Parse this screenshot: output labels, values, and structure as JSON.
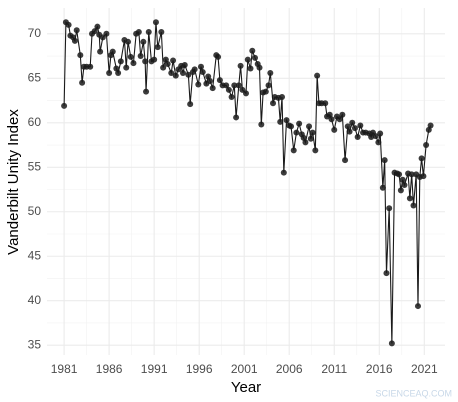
{
  "chart_data": {
    "type": "line",
    "x_label": "Year",
    "y_label": "Vanderbilt Unity Index",
    "watermark": "SCIENCEAQ.COM",
    "xlim": [
      1979.1,
      2023.3
    ],
    "ylim": [
      33.9,
      72.9
    ],
    "xticks": [
      1981,
      1986,
      1991,
      1996,
      2001,
      2006,
      2011,
      2016,
      2021
    ],
    "yticks": [
      35,
      40,
      45,
      50,
      55,
      60,
      65,
      70
    ],
    "grid": true,
    "markers": true,
    "x": [
      1981.0,
      1981.2,
      1981.5,
      1981.7,
      1982.0,
      1982.2,
      1982.4,
      1982.8,
      1983.0,
      1983.2,
      1983.5,
      1983.9,
      1984.1,
      1984.4,
      1984.7,
      1984.9,
      1985.0,
      1985.3,
      1985.7,
      1986.0,
      1986.2,
      1986.4,
      1986.8,
      1987.0,
      1987.3,
      1987.7,
      1987.9,
      1988.1,
      1988.4,
      1988.7,
      1989.0,
      1989.3,
      1989.5,
      1989.8,
      1990.0,
      1990.1,
      1990.4,
      1990.7,
      1991.0,
      1991.2,
      1991.4,
      1991.8,
      1992.0,
      1992.3,
      1992.5,
      1992.9,
      1993.1,
      1993.4,
      1993.7,
      1994.0,
      1994.2,
      1994.4,
      1994.8,
      1995.0,
      1995.3,
      1995.5,
      1995.9,
      1996.2,
      1996.4,
      1996.8,
      1997.0,
      1997.2,
      1997.5,
      1997.9,
      1998.1,
      1998.3,
      1998.6,
      1999.0,
      1999.3,
      1999.6,
      1999.9,
      2000.1,
      2000.4,
      2000.6,
      2000.8,
      2001.2,
      2001.4,
      2001.7,
      2001.9,
      2002.2,
      2002.5,
      2002.7,
      2002.9,
      2003.1,
      2003.4,
      2003.7,
      2003.9,
      2004.2,
      2004.4,
      2004.8,
      2005.0,
      2005.2,
      2005.4,
      2005.7,
      2006.0,
      2006.2,
      2006.5,
      2006.8,
      2007.1,
      2007.4,
      2007.6,
      2007.8,
      2008.2,
      2008.4,
      2008.6,
      2008.9,
      2009.1,
      2009.3,
      2009.6,
      2010.0,
      2010.2,
      2010.5,
      2010.7,
      2011.0,
      2011.3,
      2011.6,
      2011.9,
      2012.2,
      2012.5,
      2012.7,
      2013.0,
      2013.3,
      2013.6,
      2013.9,
      2014.2,
      2014.5,
      2014.9,
      2015.1,
      2015.3,
      2015.6,
      2015.9,
      2016.1,
      2016.4,
      2016.6,
      2016.8,
      2017.1,
      2017.4,
      2017.7,
      2018.0,
      2018.2,
      2018.4,
      2018.6,
      2018.8,
      2019.2,
      2019.4,
      2019.6,
      2019.8,
      2020.1,
      2020.3,
      2020.5,
      2020.7,
      2020.9,
      2021.2,
      2021.5,
      2021.7
    ],
    "series": [
      {
        "name": "Vanderbilt Unity Index",
        "color": "#1a1a1a",
        "values": [
          61.9,
          71.3,
          71.0,
          69.8,
          69.6,
          69.2,
          70.4,
          67.6,
          64.5,
          66.3,
          66.3,
          66.3,
          70.0,
          70.3,
          70.8,
          69.9,
          68.0,
          69.6,
          70.0,
          65.6,
          67.6,
          68.0,
          66.1,
          65.6,
          66.9,
          69.3,
          66.2,
          69.1,
          67.4,
          66.7,
          70.0,
          70.2,
          67.5,
          69.1,
          66.9,
          63.5,
          70.2,
          66.9,
          67.1,
          71.3,
          68.5,
          70.2,
          66.2,
          67.1,
          66.6,
          65.6,
          67.0,
          65.3,
          66.0,
          66.4,
          65.6,
          66.5,
          65.4,
          62.1,
          65.7,
          66.0,
          64.3,
          66.3,
          65.7,
          64.4,
          65.2,
          64.7,
          63.9,
          67.6,
          67.4,
          64.8,
          64.2,
          64.2,
          63.7,
          62.9,
          64.2,
          60.6,
          64.2,
          66.4,
          63.7,
          63.3,
          67.1,
          66.1,
          68.1,
          67.3,
          66.6,
          66.2,
          59.8,
          63.4,
          63.5,
          64.2,
          65.6,
          62.2,
          62.9,
          62.8,
          60.1,
          62.9,
          54.4,
          60.3,
          59.7,
          59.6,
          56.9,
          58.9,
          59.9,
          58.7,
          58.3,
          57.8,
          59.6,
          58.2,
          58.9,
          56.9,
          65.3,
          62.2,
          62.2,
          62.2,
          60.7,
          60.9,
          60.4,
          59.2,
          60.7,
          60.4,
          60.9,
          55.8,
          59.6,
          59.0,
          60.0,
          59.4,
          58.4,
          59.7,
          58.9,
          58.9,
          58.8,
          58.4,
          58.9,
          58.5,
          57.8,
          58.8,
          52.7,
          55.8,
          43.1,
          50.4,
          35.2,
          54.4,
          54.3,
          54.2,
          52.4,
          53.6,
          53.0,
          54.3,
          51.5,
          54.2,
          50.7,
          54.2,
          39.4,
          53.9,
          56.0,
          54.0,
          57.5,
          59.2,
          59.7
        ]
      }
    ]
  }
}
